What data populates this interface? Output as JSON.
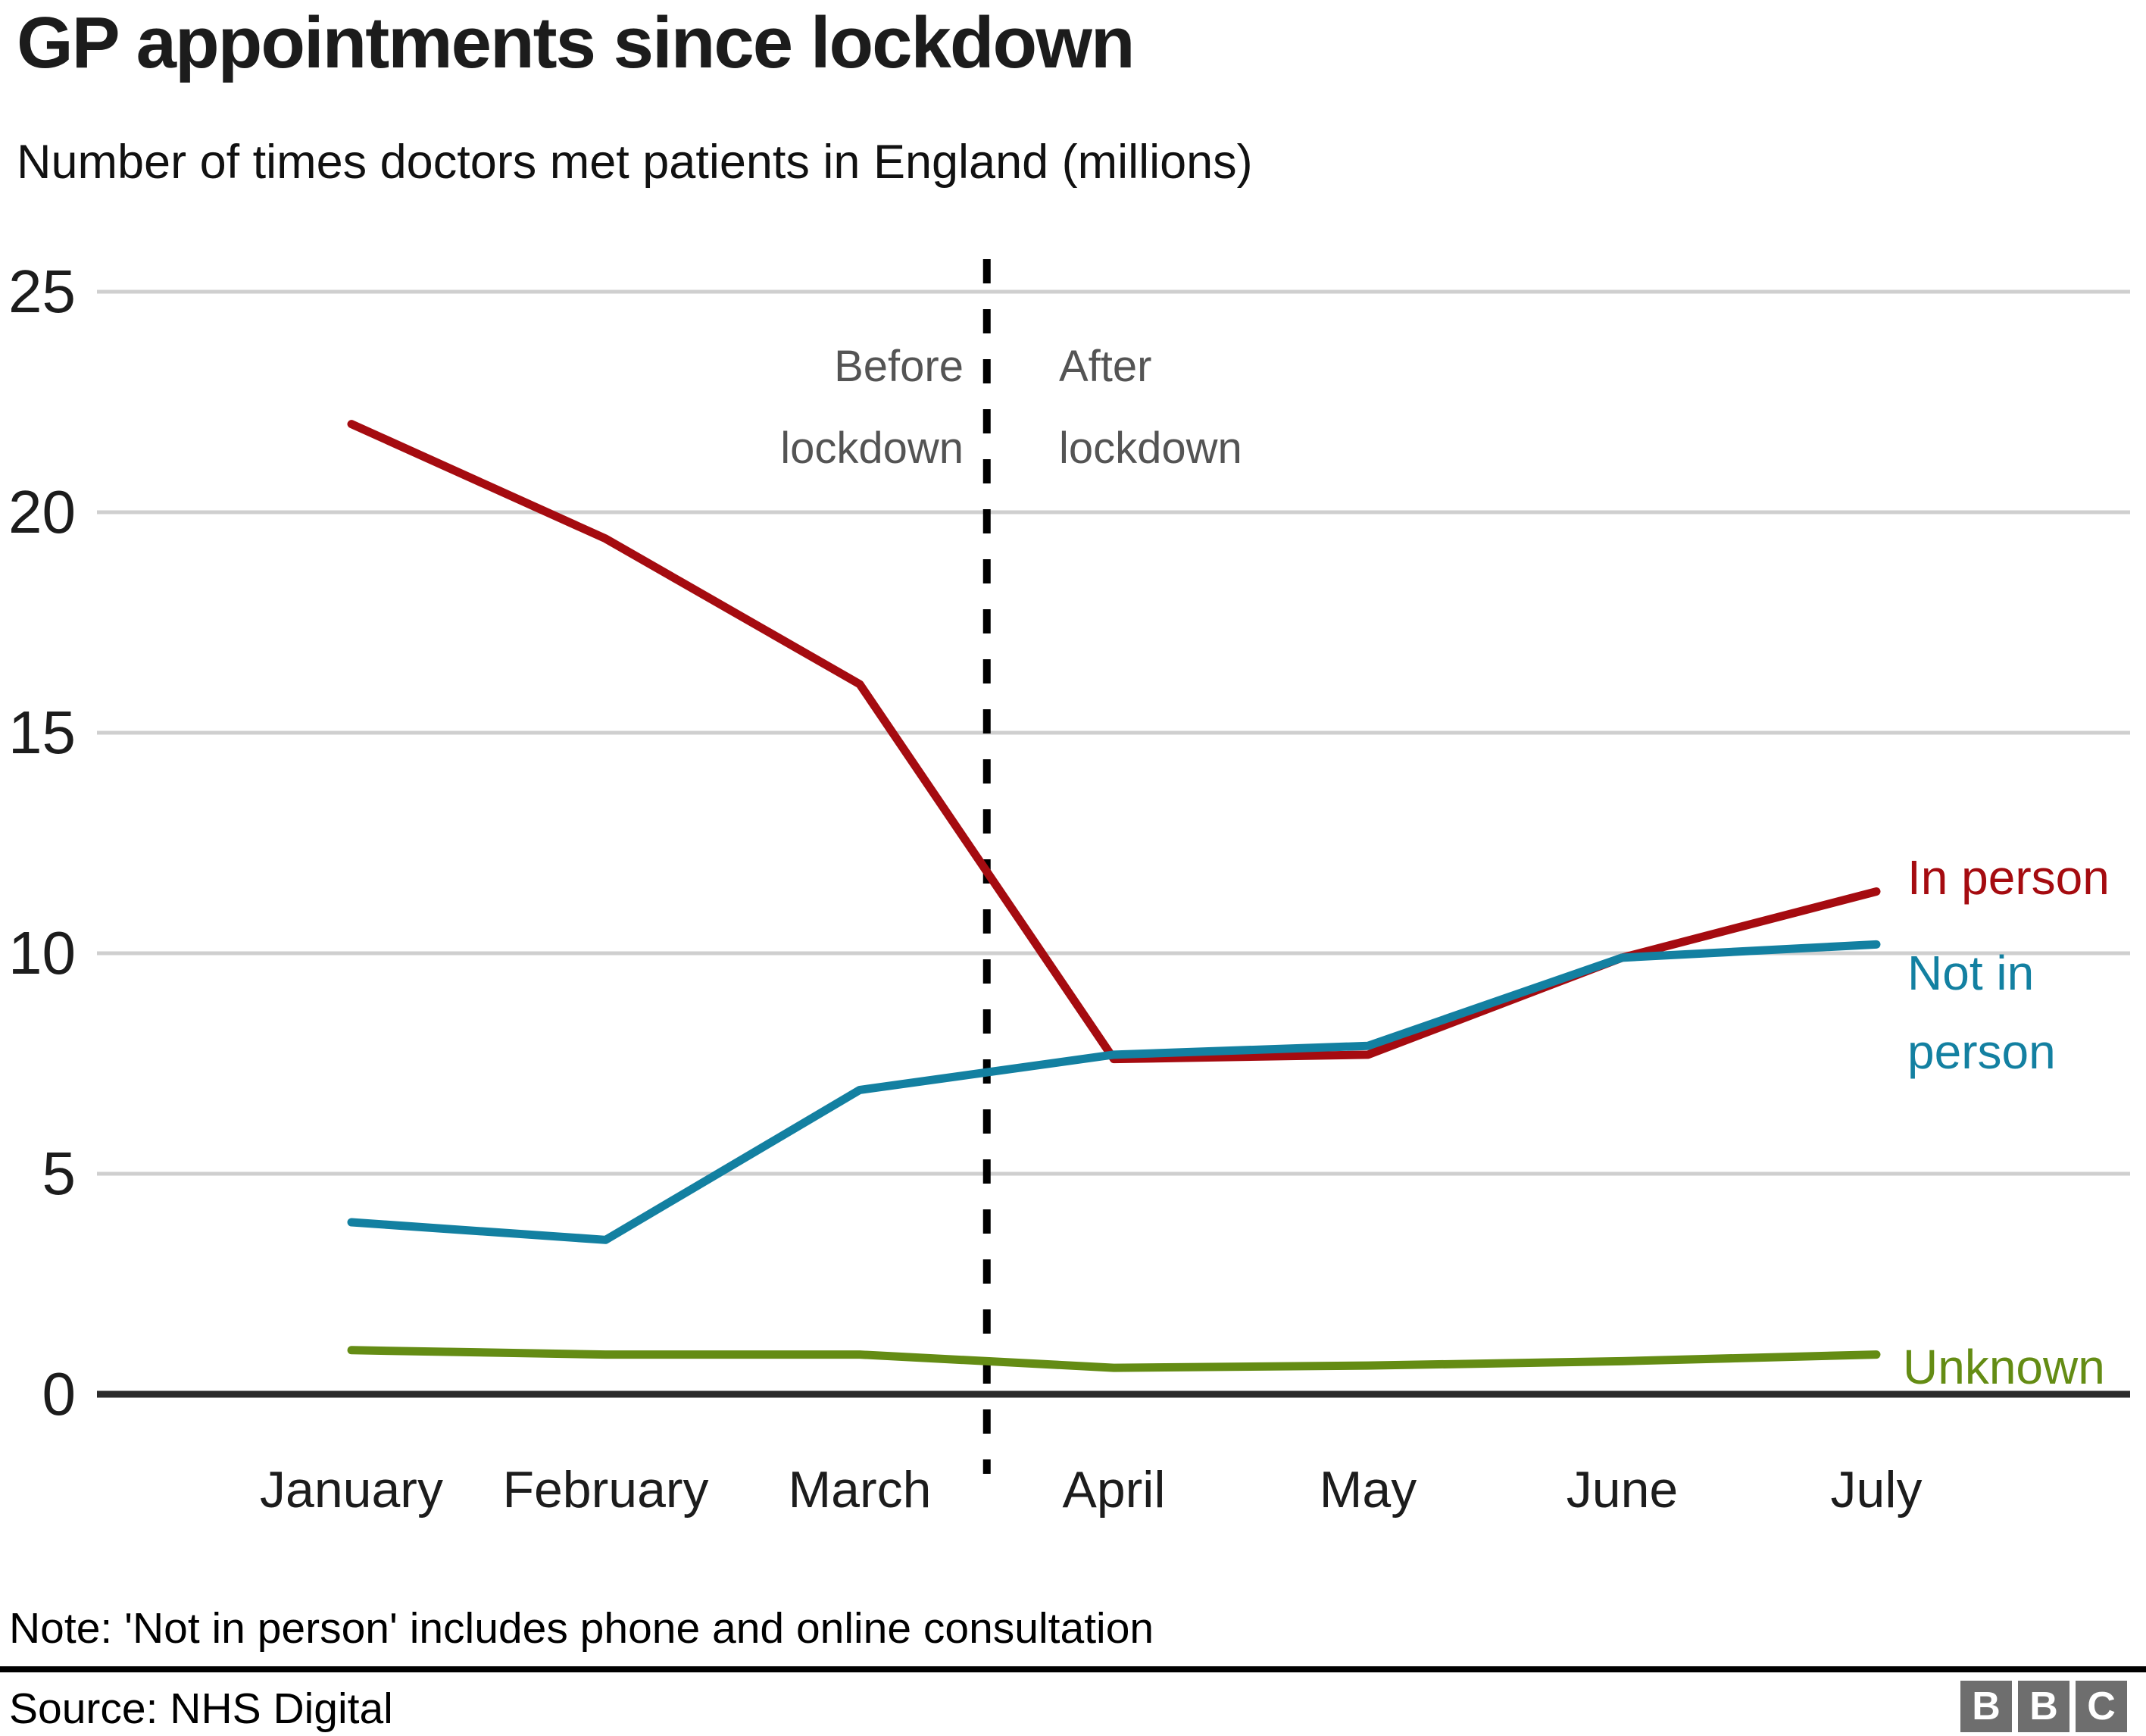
{
  "header": {
    "title": "GP appointments since lockdown",
    "subtitle": "Number of times doctors met patients in England (millions)"
  },
  "chart_data": {
    "type": "line",
    "title": "GP appointments since lockdown",
    "subtitle": "Number of times doctors met patients in England (millions)",
    "categories": [
      "January",
      "February",
      "March",
      "April",
      "May",
      "June",
      "July"
    ],
    "series": [
      {
        "name": "In person",
        "label": "In person",
        "color": "#a50b10",
        "values": [
          22.0,
          19.4,
          16.1,
          7.6,
          7.7,
          9.9,
          11.4
        ]
      },
      {
        "name": "Unknown",
        "label": "Unknown",
        "color": "#648c14",
        "values": [
          1.0,
          0.9,
          0.9,
          0.6,
          0.65,
          0.75,
          0.9
        ]
      },
      {
        "name": "Not in person",
        "label": "Not in\nperson",
        "color": "#1380a1",
        "values": [
          3.9,
          3.5,
          6.9,
          7.7,
          7.9,
          9.9,
          10.2
        ]
      }
    ],
    "ylim": [
      0,
      25
    ],
    "yticks": [
      0,
      5,
      10,
      15,
      20,
      25
    ],
    "xlabel": "",
    "ylabel": "",
    "grid": "horizontal gridlines on",
    "legend_position": "right of line ends, colored text labels",
    "divider": {
      "position": "midway between March and April",
      "style": "vertical black dashed line",
      "label_left": "Before\nlockdown",
      "label_right": "After\nlockdown"
    }
  },
  "annotations": {
    "before_lockdown": "Before\nlockdown",
    "after_lockdown": "After\nlockdown"
  },
  "legend": {
    "in_person": "In person",
    "not_in_person": "Not in\nperson",
    "unknown": "Unknown"
  },
  "footer": {
    "note": "Note: 'Not in person' includes phone and online consultation",
    "source": "Source: NHS Digital",
    "logo_letters": [
      "B",
      "B",
      "C"
    ]
  },
  "colors": {
    "in_person": "#a50b10",
    "not_in_person": "#1380a1",
    "unknown": "#648c14",
    "gridline": "#cfcfcf",
    "axis": "#2b2b2b",
    "divider": "#000000",
    "annotation_text": "#545454",
    "logo_background": "#6e6e6e"
  }
}
